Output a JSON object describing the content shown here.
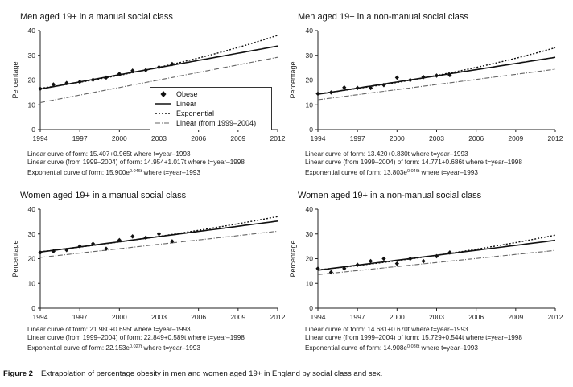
{
  "legend": {
    "obese": "Obese",
    "linear": "Linear",
    "exponential": "Exponential",
    "linear_recent": "Linear (from 1999–2004)"
  },
  "caption": {
    "label": "Figure 2",
    "text": "Extrapolation of percentage obesity in men and women aged 19+ in England by social class and sex."
  },
  "chart_data": [
    {
      "type": "scatter",
      "title": "Men aged 19+ in a manual social class",
      "xlabel": "",
      "ylabel": "Percentage",
      "xlim": [
        1994,
        2012
      ],
      "ylim": [
        0,
        40
      ],
      "xticks": [
        1994,
        1997,
        2000,
        2003,
        2006,
        2009,
        2012
      ],
      "yticks": [
        0,
        10,
        20,
        30,
        40
      ],
      "series": [
        {
          "name": "Obese",
          "x": [
            1994,
            1995,
            1996,
            1997,
            1998,
            1999,
            2000,
            2001,
            2002,
            2003,
            2004
          ],
          "values": [
            16.5,
            18.2,
            18.8,
            19.3,
            20.1,
            21.0,
            22.5,
            23.8,
            24.0,
            25.2,
            26.5
          ]
        },
        {
          "name": "Linear",
          "formula": {
            "kind": "linear",
            "a": 15.407,
            "b": 0.965,
            "t0": 1993
          }
        },
        {
          "name": "Exponential",
          "formula": {
            "kind": "exponential",
            "a": 15.9,
            "k": 0.046,
            "t0": 1993
          }
        },
        {
          "name": "Linear (from 1999–2004)",
          "formula": {
            "kind": "linear",
            "a": 14.954,
            "b": 1.017,
            "t0": 1998
          }
        }
      ],
      "equations": {
        "line1": "Linear curve of form: 15.407+0.965t where t=year–1993",
        "line2": "Linear curve (from 1999–2004) of form: 14.954+1.017t where t=year–1998",
        "line3_prefix": "Exponential curve of form: 15.900e",
        "line3_exp": "0.046t",
        "line3_suffix": " where t=year–1993"
      }
    },
    {
      "type": "scatter",
      "title": "Men aged 19+ in a non-manual social class",
      "xlabel": "",
      "ylabel": "Percentage",
      "xlim": [
        1994,
        2012
      ],
      "ylim": [
        0,
        40
      ],
      "xticks": [
        1994,
        1997,
        2000,
        2003,
        2006,
        2009,
        2012
      ],
      "yticks": [
        0,
        10,
        20,
        30,
        40
      ],
      "series": [
        {
          "name": "Obese",
          "x": [
            1994,
            1995,
            1996,
            1997,
            1998,
            1999,
            2000,
            2001,
            2002,
            2003,
            2004
          ],
          "values": [
            14.5,
            15.0,
            17.0,
            16.8,
            16.8,
            18.0,
            21.0,
            20.0,
            21.2,
            21.8,
            22.0
          ]
        },
        {
          "name": "Linear",
          "formula": {
            "kind": "linear",
            "a": 13.42,
            "b": 0.83,
            "t0": 1993
          }
        },
        {
          "name": "Exponential",
          "formula": {
            "kind": "exponential",
            "a": 13.803,
            "k": 0.046,
            "t0": 1993
          }
        },
        {
          "name": "Linear (from 1999–2004)",
          "formula": {
            "kind": "linear",
            "a": 14.771,
            "b": 0.686,
            "t0": 1998
          }
        }
      ],
      "equations": {
        "line1": "Linear curve of form: 13.420+0.830t where t=year–1993",
        "line2": "Linear curve (from 1999–2004) of form: 14.771+0.686t where t=year–1998",
        "line3_prefix": "Exponential curve of form: 13.803e",
        "line3_exp": "0.046t",
        "line3_suffix": " where t=year–1993"
      }
    },
    {
      "type": "scatter",
      "title": "Women aged 19+ in a manual social class",
      "xlabel": "",
      "ylabel": "Percentage",
      "xlim": [
        1994,
        2012
      ],
      "ylim": [
        0,
        40
      ],
      "xticks": [
        1994,
        1997,
        2000,
        2003,
        2006,
        2009,
        2012
      ],
      "yticks": [
        0,
        10,
        20,
        30,
        40
      ],
      "series": [
        {
          "name": "Obese",
          "x": [
            1994,
            1995,
            1996,
            1997,
            1998,
            1999,
            2000,
            2001,
            2002,
            2003,
            2004
          ],
          "values": [
            22.5,
            23.0,
            23.5,
            25.0,
            26.0,
            24.0,
            27.5,
            29.0,
            28.5,
            30.0,
            27.0
          ]
        },
        {
          "name": "Linear",
          "formula": {
            "kind": "linear",
            "a": 21.98,
            "b": 0.695,
            "t0": 1993
          }
        },
        {
          "name": "Exponential",
          "formula": {
            "kind": "exponential",
            "a": 22.153,
            "k": 0.027,
            "t0": 1993
          }
        },
        {
          "name": "Linear (from 1999–2004)",
          "formula": {
            "kind": "linear",
            "a": 22.849,
            "b": 0.589,
            "t0": 1998
          }
        }
      ],
      "equations": {
        "line1": "Linear curve of form: 21.980+0.695t where t=year–1993",
        "line2": "Linear curve (from 1999–2004) of form: 22.849+0.589t where t=year–1998",
        "line3_prefix": "Exponential curve of form: 22.153e",
        "line3_exp": "0.027t",
        "line3_suffix": " where t=year–1993"
      }
    },
    {
      "type": "scatter",
      "title": "Women aged 19+ in a non-manual social class",
      "xlabel": "",
      "ylabel": "Percentage",
      "xlim": [
        1994,
        2012
      ],
      "ylim": [
        0,
        40
      ],
      "xticks": [
        1994,
        1997,
        2000,
        2003,
        2006,
        2009,
        2012
      ],
      "yticks": [
        0,
        10,
        20,
        30,
        40
      ],
      "series": [
        {
          "name": "Obese",
          "x": [
            1994,
            1995,
            1996,
            1997,
            1998,
            1999,
            2000,
            2001,
            2002,
            2003,
            2004
          ],
          "values": [
            16.0,
            14.5,
            16.0,
            17.5,
            19.0,
            20.0,
            18.0,
            20.0,
            19.0,
            21.0,
            22.5
          ]
        },
        {
          "name": "Linear",
          "formula": {
            "kind": "linear",
            "a": 14.681,
            "b": 0.67,
            "t0": 1993
          }
        },
        {
          "name": "Exponential",
          "formula": {
            "kind": "exponential",
            "a": 14.908,
            "k": 0.036,
            "t0": 1993
          }
        },
        {
          "name": "Linear (from 1999–2004)",
          "formula": {
            "kind": "linear",
            "a": 15.729,
            "b": 0.544,
            "t0": 1998
          }
        }
      ],
      "equations": {
        "line1": "Linear curve of form: 14.681+0.670t where t=year–1993",
        "line2": "Linear curve (from 1999–2004) of form: 15.729+0.544t where t=year–1998",
        "line3_prefix": "Exponential curve of form: 14.908e",
        "line3_exp": "0.036t",
        "line3_suffix": " where t=year–1993"
      }
    }
  ]
}
